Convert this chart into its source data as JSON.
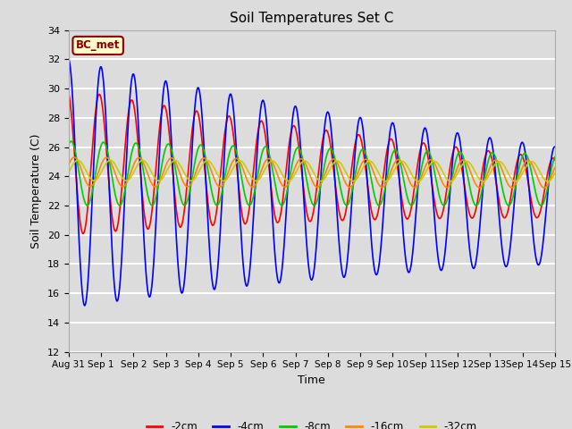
{
  "title": "Soil Temperatures Set C",
  "xlabel": "Time",
  "ylabel": "Soil Temperature (C)",
  "ylim": [
    12,
    34
  ],
  "yticks": [
    12,
    14,
    16,
    18,
    20,
    22,
    24,
    26,
    28,
    30,
    32,
    34
  ],
  "background_color": "#dcdcdc",
  "plot_bg_color": "#dcdcdc",
  "grid_color": "white",
  "annotation_text": "BC_met",
  "annotation_bg": "#ffffcc",
  "annotation_border": "#8b0000",
  "series": [
    {
      "label": "-2cm",
      "color": "#ff0000",
      "amplitude": 5.0,
      "mean": 25.0,
      "period": 1.0,
      "phase": 1.9,
      "amp_decay": 0.06,
      "mean_decay": -0.12
    },
    {
      "label": "-4cm",
      "color": "#0000ff",
      "amplitude": 8.5,
      "mean": 23.5,
      "period": 1.0,
      "phase": 1.6,
      "amp_decay": 0.05,
      "mean_decay": -0.1
    },
    {
      "label": "-8cm",
      "color": "#00cc00",
      "amplitude": 2.2,
      "mean": 24.2,
      "period": 1.0,
      "phase": 1.1,
      "amp_decay": 0.015,
      "mean_decay": -0.03
    },
    {
      "label": "-16cm",
      "color": "#ff8800",
      "amplitude": 1.0,
      "mean": 24.3,
      "period": 1.0,
      "phase": 0.5,
      "amp_decay": 0.005,
      "mean_decay": -0.01
    },
    {
      "label": "-32cm",
      "color": "#cccc00",
      "amplitude": 0.7,
      "mean": 24.4,
      "period": 1.0,
      "phase": -0.2,
      "amp_decay": 0.002,
      "mean_decay": -0.005
    }
  ],
  "x_start_day": 0,
  "x_end_day": 15,
  "n_points": 2000,
  "xtick_days": [
    0,
    1,
    2,
    3,
    4,
    5,
    6,
    7,
    8,
    9,
    10,
    11,
    12,
    13,
    14,
    15
  ],
  "xtick_labels": [
    "Aug 31",
    "Sep 1",
    "Sep 2",
    "Sep 3",
    "Sep 4",
    "Sep 5",
    "Sep 6",
    "Sep 7",
    "Sep 8",
    "Sep 9",
    "Sep 10",
    "Sep 11",
    "Sep 12",
    "Sep 13",
    "Sep 14",
    "Sep 15"
  ],
  "linewidth": 1.2,
  "fig_width": 6.4,
  "fig_height": 4.8,
  "dpi": 100
}
